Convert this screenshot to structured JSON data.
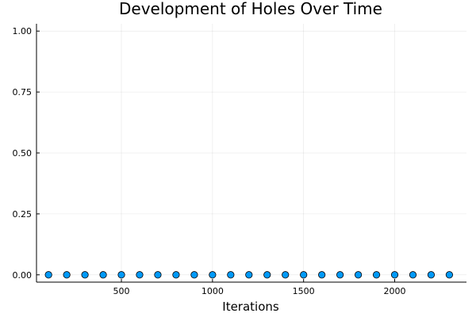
{
  "chart_data": {
    "type": "scatter",
    "title": "Development of Holes Over Time",
    "xlabel": "Iterations",
    "ylabel": "",
    "xlim": [
      34,
      2394
    ],
    "ylim": [
      -0.03,
      1.03
    ],
    "xticks": [
      500,
      1000,
      1500,
      2000
    ],
    "xtick_labels": [
      "500",
      "1000",
      "1500",
      "2000"
    ],
    "yticks": [
      0,
      0.25,
      0.5,
      0.75,
      1.0
    ],
    "ytick_labels": [
      "0.00",
      "0.25",
      "0.50",
      "0.75",
      "1.00"
    ],
    "grid": true,
    "legend": "none",
    "series": [
      {
        "x": [
          100,
          200,
          300,
          400,
          500,
          600,
          700,
          800,
          900,
          1000,
          1100,
          1200,
          1300,
          1400,
          1500,
          1600,
          1700,
          1800,
          1900,
          2000,
          2100,
          2200,
          2300
        ],
        "y": [
          0,
          0,
          0,
          0,
          0,
          0,
          0,
          0,
          0,
          0,
          0,
          0,
          0,
          0,
          0,
          0,
          0,
          0,
          0,
          0,
          0,
          0,
          0
        ],
        "color": "#009AFA"
      }
    ]
  }
}
